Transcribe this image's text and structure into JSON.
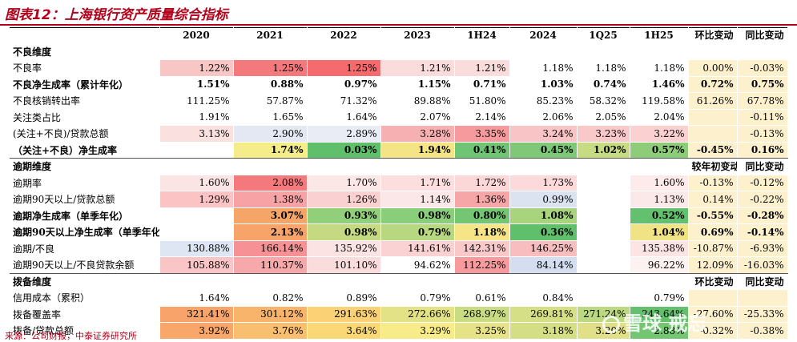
{
  "title": "图表12：上海银行资产质量综合指标",
  "source": "来源：公司财报，中泰证券研究所",
  "watermark": "雪球 戒忘",
  "headers": [
    "",
    "2020",
    "2021",
    "2022",
    "2023",
    "1H24",
    "2024",
    "1Q25",
    "1H25",
    "环比变动",
    "同比变动"
  ],
  "rows": [
    {
      "label": "不良维度",
      "section": true,
      "cells": [
        "",
        "",
        "",
        "",
        "",
        "",
        "",
        ""
      ],
      "c1": "",
      "c2": ""
    },
    {
      "label": "不良率",
      "cells": [
        "1.22%",
        "1.25%",
        "1.25%",
        "1.21%",
        "1.21%",
        "1.18%",
        "1.18%",
        "1.18%"
      ],
      "c1": "0.00%",
      "c2": "-0.03%"
    },
    {
      "label": "不良净生成率（累计年化）",
      "bold": true,
      "cells": [
        "1.51%",
        "0.88%",
        "0.97%",
        "1.15%",
        "0.71%",
        "1.03%",
        "0.74%",
        "1.46%"
      ],
      "c1": "0.72%",
      "c2": "0.75%"
    },
    {
      "label": "不良核销转出率",
      "cells": [
        "111.25%",
        "57.87%",
        "71.32%",
        "89.88%",
        "51.80%",
        "85.23%",
        "58.32%",
        "119.58%"
      ],
      "c1": "61.26%",
      "c2": "67.78%"
    },
    {
      "label": "关注类占比",
      "cells": [
        "1.91%",
        "1.65%",
        "1.64%",
        "2.07%",
        "2.14%",
        "2.06%",
        "2.05%",
        "2.04%"
      ],
      "c1": "",
      "c2": "-0.11%"
    },
    {
      "label": "(关注+不良)/贷款总额",
      "cells": [
        "3.13%",
        "2.90%",
        "2.89%",
        "3.28%",
        "3.35%",
        "3.24%",
        "3.23%",
        "3.22%"
      ],
      "c1": "",
      "c2": "-0.13%"
    },
    {
      "label": "（关注+不良）净生成率",
      "bold": true,
      "bline": true,
      "cells": [
        "",
        "1.74%",
        "0.03%",
        "1.94%",
        "0.41%",
        "0.45%",
        "1.02%",
        "0.57%"
      ],
      "c1": "-0.45%",
      "c2": "0.16%"
    },
    {
      "label": "逾期维度",
      "section": true,
      "cells": [
        "",
        "",
        "",
        "",
        "",
        "",
        "",
        ""
      ],
      "c1": "较年初变动",
      "c2": "同比变动"
    },
    {
      "label": "逾期率",
      "cells": [
        "1.60%",
        "2.08%",
        "1.70%",
        "1.71%",
        "1.72%",
        "1.73%",
        "",
        "1.60%"
      ],
      "c1": "-0.13%",
      "c2": "-0.12%"
    },
    {
      "label": "逾期90天以上/贷款总额",
      "cells": [
        "1.29%",
        "1.38%",
        "1.26%",
        "1.14%",
        "1.36%",
        "0.99%",
        "",
        "1.13%"
      ],
      "c1": "0.14%",
      "c2": "-0.22%"
    },
    {
      "label": "逾期净生成率（单季年化）",
      "bold": true,
      "cells": [
        "",
        "3.07%",
        "0.93%",
        "0.98%",
        "0.80%",
        "1.08%",
        "",
        "0.52%"
      ],
      "c1": "-0.55%",
      "c2": "-0.28%"
    },
    {
      "label": "逾期90天以上净生成率（单季年化）",
      "bold": true,
      "cells": [
        "",
        "2.13%",
        "0.98%",
        "0.79%",
        "1.18%",
        "0.36%",
        "",
        "1.04%"
      ],
      "c1": "0.69%",
      "c2": "-0.14%"
    },
    {
      "label": "逾期/不良",
      "cells": [
        "130.88%",
        "166.14%",
        "135.92%",
        "141.61%",
        "142.31%",
        "146.25%",
        "",
        "135.38%"
      ],
      "c1": "-10.87%",
      "c2": "-6.93%"
    },
    {
      "label": "逾期90天以上/不良贷款余额",
      "bline": true,
      "cells": [
        "105.88%",
        "110.37%",
        "101.10%",
        "94.62%",
        "112.25%",
        "84.14%",
        "",
        "96.22%"
      ],
      "c1": "12.09%",
      "c2": "-16.03%"
    },
    {
      "label": "拨备维度",
      "section": true,
      "cells": [
        "",
        "",
        "",
        "",
        "",
        "",
        "",
        ""
      ],
      "c1": "环比变动",
      "c2": "同比变动"
    },
    {
      "label": "信用成本（累积）",
      "cells": [
        "1.64%",
        "0.82%",
        "0.89%",
        "0.79%",
        "0.61%",
        "0.84%",
        "",
        "0.79%"
      ],
      "c1": "",
      "c2": ""
    },
    {
      "label": "拨备覆盖率",
      "cells": [
        "321.41%",
        "301.12%",
        "291.63%",
        "272.66%",
        "268.97%",
        "269.81%",
        "271.24%",
        "243.64%"
      ],
      "c1": "-27.60%",
      "c2": "-25.33%"
    },
    {
      "label": "拨备/贷款总额",
      "cells": [
        "3.92%",
        "3.76%",
        "3.64%",
        "3.29%",
        "3.25%",
        "3.18%",
        "3.20%",
        "2.88%"
      ],
      "c1": "-0.32%",
      "c2": "-0.38%"
    }
  ],
  "colors": {
    "title_red": "#b3001b",
    "compare_bg": "#fdf1cd"
  },
  "cell_colors": [
    [
      "",
      "",
      "",
      "",
      "",
      "",
      "",
      ""
    ],
    [
      "#f9c6c6",
      "#f4797c",
      "#f56a6d",
      "#fbdcdc",
      "#fbdcdc",
      "",
      "",
      ""
    ],
    [
      "",
      "",
      "",
      "",
      "",
      "",
      "",
      ""
    ],
    [
      "",
      "",
      "",
      "",
      "",
      "",
      "",
      ""
    ],
    [
      "",
      "",
      "",
      "",
      "",
      "",
      "",
      ""
    ],
    [
      "#fbe0e0",
      "#e3e8f3",
      "#e9ecf5",
      "#f7b0b2",
      "#f69a9d",
      "#f9c4c5",
      "#f9c9ca",
      "#fad0d1"
    ],
    [
      "",
      "#f5ec8a",
      "#5fbf6b",
      "#f5e486",
      "#6fc573",
      "#7ec878",
      "#c6db82",
      "#8dcc79"
    ],
    [
      "",
      "",
      "",
      "",
      "",
      "",
      "",
      ""
    ],
    [
      "#fbe4e4",
      "#f4797c",
      "#fce7e7",
      "#fcdedf",
      "#fbd7d8",
      "#fcdadb",
      "",
      "#fdeaea"
    ],
    [
      "#fbc3c4",
      "#f7a3a5",
      "#fbd0d1",
      "#fbe7e7",
      "#f7a6a8",
      "#dbe3f1",
      "",
      "#fbe9e9"
    ],
    [
      "",
      "#f5a567",
      "#91cf7b",
      "#8acd7a",
      "#74c673",
      "#a7d47d",
      "",
      "#62c06e"
    ],
    [
      "",
      "#f7a36a",
      "#c5d982",
      "#b7d780",
      "#f6e587",
      "#5fbf6b",
      "",
      "#f0e386"
    ],
    [
      "#dfe6f3",
      "#f69295",
      "#fbe3e4",
      "#fad2d3",
      "#f9c9ca",
      "#f8bdbe",
      "",
      "#fce4e5"
    ],
    [
      "#f9c5c6",
      "#f7a8aa",
      "#fbdcdd",
      "#ffffff",
      "#f69a9d",
      "#d4def0",
      "",
      "#fdf2f2"
    ],
    [
      "",
      "",
      "",
      "",
      "",
      "",
      "",
      ""
    ],
    [
      "",
      "",
      "",
      "",
      "",
      "",
      "",
      ""
    ],
    [
      "#f8a36a",
      "#f9b46c",
      "#fad275",
      "#e4e286",
      "#c9dc83",
      "#d5df85",
      "#bcd981",
      "#63c06d"
    ],
    [
      "#f8a66a",
      "#f9bf70",
      "#fbd876",
      "#f7eb8a",
      "#e5e287",
      "#d3de85",
      "#dfe087",
      "#74c673"
    ]
  ]
}
